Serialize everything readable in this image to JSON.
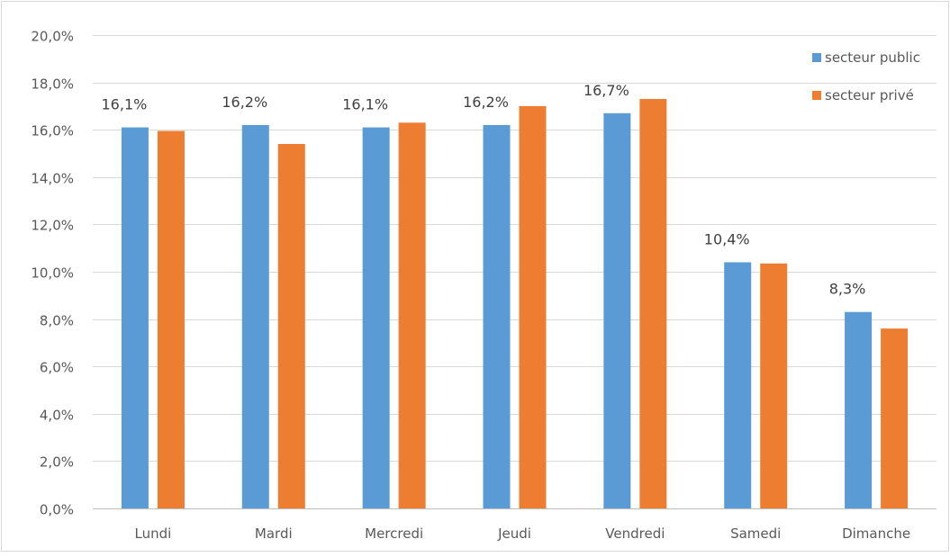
{
  "chart_data": {
    "type": "bar",
    "categories": [
      "Lundi",
      "Mardi",
      "Mercredi",
      "Jeudi",
      "Vendredi",
      "Samedi",
      "Dimanche"
    ],
    "series": [
      {
        "name": "secteur public",
        "color": "#5B9BD5",
        "values": [
          16.1,
          16.2,
          16.1,
          16.2,
          16.7,
          10.4,
          8.3
        ],
        "labels": [
          "16,1%",
          "16,2%",
          "16,1%",
          "16,2%",
          "16,7%",
          "10,4%",
          "8,3%"
        ]
      },
      {
        "name": "secteur privé",
        "color": "#ED7D31",
        "values": [
          15.95,
          15.4,
          16.3,
          17.0,
          17.3,
          10.35,
          7.6
        ],
        "labels": []
      }
    ],
    "ylim": [
      0,
      20
    ],
    "yticks": [
      0,
      2,
      4,
      6,
      8,
      10,
      12,
      14,
      16,
      18,
      20
    ],
    "ytick_labels": [
      "0,0%",
      "2,0%",
      "4,0%",
      "6,0%",
      "8,0%",
      "10,0%",
      "12,0%",
      "14,0%",
      "16,0%",
      "18,0%",
      "20,0%"
    ],
    "grid": true,
    "legend_position": "top-right",
    "title": "",
    "xlabel": "",
    "ylabel": ""
  }
}
